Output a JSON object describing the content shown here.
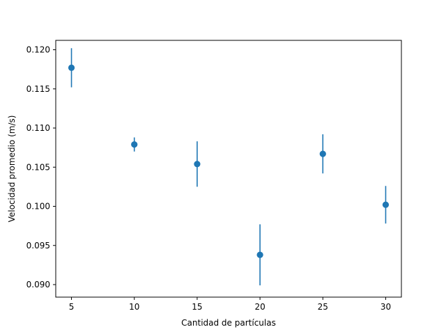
{
  "chart_data": {
    "type": "scatter",
    "title": "",
    "xlabel": "Cantidad de partículas",
    "ylabel": "Velocidad promedio (m/s)",
    "x": [
      5,
      10,
      15,
      20,
      25,
      30
    ],
    "y": [
      0.1177,
      0.1079,
      0.1054,
      0.0938,
      0.1067,
      0.1002
    ],
    "yerr": [
      0.0025,
      0.0009,
      0.0029,
      0.0039,
      0.0025,
      0.0024
    ],
    "xlim": [
      3.75,
      31.25
    ],
    "ylim": [
      0.0884,
      0.1212
    ],
    "xticks": [
      5,
      10,
      15,
      20,
      25,
      30
    ],
    "xtick_labels": [
      "5",
      "10",
      "15",
      "20",
      "25",
      "30"
    ],
    "yticks": [
      0.09,
      0.095,
      0.1,
      0.105,
      0.11,
      0.115,
      0.12
    ],
    "ytick_labels": [
      "0.090",
      "0.095",
      "0.100",
      "0.105",
      "0.110",
      "0.115",
      "0.120"
    ],
    "grid": false,
    "legend": "none",
    "color": "#1f77b4"
  }
}
